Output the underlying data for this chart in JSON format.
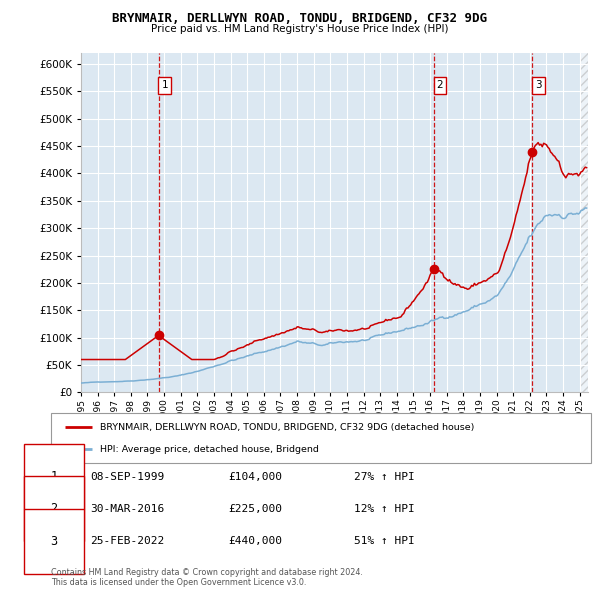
{
  "title": "BRYNMAIR, DERLLWYN ROAD, TONDU, BRIDGEND, CF32 9DG",
  "subtitle": "Price paid vs. HM Land Registry's House Price Index (HPI)",
  "hpi_color": "#7bafd4",
  "price_color": "#cc0000",
  "vline_color": "#cc0000",
  "bg_color": "#dce8f2",
  "grid_color": "#ffffff",
  "purchases": [
    {
      "date_num": 1999.69,
      "price": 104000,
      "label": "1"
    },
    {
      "date_num": 2016.25,
      "price": 225000,
      "label": "2"
    },
    {
      "date_num": 2022.15,
      "price": 440000,
      "label": "3"
    }
  ],
  "table_rows": [
    {
      "num": "1",
      "date": "08-SEP-1999",
      "price": "£104,000",
      "hpi": "27% ↑ HPI"
    },
    {
      "num": "2",
      "date": "30-MAR-2016",
      "price": "£225,000",
      "hpi": "12% ↑ HPI"
    },
    {
      "num": "3",
      "date": "25-FEB-2022",
      "price": "£440,000",
      "hpi": "51% ↑ HPI"
    }
  ],
  "legend_label_red": "BRYNMAIR, DERLLWYN ROAD, TONDU, BRIDGEND, CF32 9DG (detached house)",
  "legend_label_blue": "HPI: Average price, detached house, Bridgend",
  "footer": "Contains HM Land Registry data © Crown copyright and database right 2024.\nThis data is licensed under the Open Government Licence v3.0.",
  "ylim": [
    0,
    620000
  ],
  "xlim_start": 1995.0,
  "xlim_end": 2025.5
}
